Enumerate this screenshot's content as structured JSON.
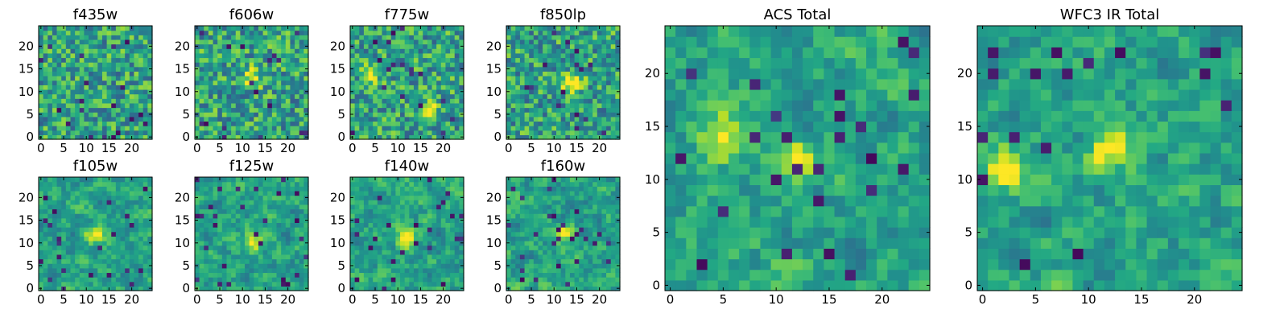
{
  "figure": {
    "colormap": "viridis",
    "colors": {
      "low": "#440154",
      "mid": "#21918c",
      "high": "#fde725"
    }
  },
  "chart_data": [
    {
      "type": "heatmap",
      "title": "f435w",
      "grid": [
        25,
        25
      ],
      "xlim": [
        0,
        24
      ],
      "ylim": [
        0,
        24
      ],
      "xticks": [
        "0",
        "5",
        "10",
        "15",
        "20"
      ],
      "yticks": [
        "0",
        "5",
        "10",
        "15",
        "20"
      ],
      "bright_spots": []
    },
    {
      "type": "heatmap",
      "title": "f606w",
      "grid": [
        25,
        25
      ],
      "xlim": [
        0,
        24
      ],
      "ylim": [
        0,
        24
      ],
      "xticks": [
        "0",
        "5",
        "10",
        "15",
        "20"
      ],
      "yticks": [
        "0",
        "5",
        "10",
        "15",
        "20"
      ],
      "bright_spots": [
        [
          12,
          13
        ]
      ]
    },
    {
      "type": "heatmap",
      "title": "f775w",
      "grid": [
        25,
        25
      ],
      "xlim": [
        0,
        24
      ],
      "ylim": [
        0,
        24
      ],
      "xticks": [
        "0",
        "5",
        "10",
        "15",
        "20"
      ],
      "yticks": [
        "0",
        "5",
        "10",
        "15",
        "20"
      ],
      "bright_spots": [
        [
          4,
          14
        ],
        [
          17,
          6
        ]
      ]
    },
    {
      "type": "heatmap",
      "title": "f850lp",
      "grid": [
        25,
        25
      ],
      "xlim": [
        0,
        24
      ],
      "ylim": [
        0,
        24
      ],
      "xticks": [
        "0",
        "5",
        "10",
        "15",
        "20"
      ],
      "yticks": [
        "0",
        "5",
        "10",
        "15",
        "20"
      ],
      "bright_spots": [
        [
          14,
          12
        ]
      ]
    },
    {
      "type": "heatmap",
      "title": "f105w",
      "grid": [
        25,
        25
      ],
      "xlim": [
        0,
        24
      ],
      "ylim": [
        0,
        24
      ],
      "xticks": [
        "0",
        "5",
        "10",
        "15",
        "20"
      ],
      "yticks": [
        "0",
        "5",
        "10",
        "15",
        "20"
      ],
      "bright_spots": [
        [
          12,
          12
        ]
      ]
    },
    {
      "type": "heatmap",
      "title": "f125w",
      "grid": [
        25,
        25
      ],
      "xlim": [
        0,
        24
      ],
      "ylim": [
        0,
        24
      ],
      "xticks": [
        "0",
        "5",
        "10",
        "15",
        "20"
      ],
      "yticks": [
        "0",
        "5",
        "10",
        "15",
        "20"
      ],
      "bright_spots": [
        [
          12,
          10
        ]
      ]
    },
    {
      "type": "heatmap",
      "title": "f140w",
      "grid": [
        25,
        25
      ],
      "xlim": [
        0,
        24
      ],
      "ylim": [
        0,
        24
      ],
      "xticks": [
        "0",
        "5",
        "10",
        "15",
        "20"
      ],
      "yticks": [
        "0",
        "5",
        "10",
        "15",
        "20"
      ],
      "bright_spots": [
        [
          12,
          11
        ]
      ]
    },
    {
      "type": "heatmap",
      "title": "f160w",
      "grid": [
        25,
        25
      ],
      "xlim": [
        0,
        24
      ],
      "ylim": [
        0,
        24
      ],
      "xticks": [
        "0",
        "5",
        "10",
        "15",
        "20"
      ],
      "yticks": [
        "0",
        "5",
        "10",
        "15",
        "20"
      ],
      "bright_spots": [
        [
          12,
          12
        ]
      ]
    },
    {
      "type": "heatmap",
      "title": "ACS Total",
      "grid": [
        25,
        25
      ],
      "xlim": [
        0,
        24
      ],
      "ylim": [
        0,
        24
      ],
      "xticks": [
        "0",
        "5",
        "10",
        "15",
        "20"
      ],
      "yticks": [
        "0",
        "5",
        "10",
        "15",
        "20"
      ],
      "bright_spots": [
        [
          5,
          14
        ],
        [
          12,
          12
        ]
      ]
    },
    {
      "type": "heatmap",
      "title": "WFC3 IR Total",
      "grid": [
        25,
        25
      ],
      "xlim": [
        0,
        24
      ],
      "ylim": [
        0,
        24
      ],
      "xticks": [
        "0",
        "5",
        "10",
        "15",
        "20"
      ],
      "yticks": [
        "0",
        "5",
        "10",
        "15",
        "20"
      ],
      "bright_spots": [
        [
          12,
          13
        ],
        [
          2,
          11
        ]
      ]
    }
  ]
}
